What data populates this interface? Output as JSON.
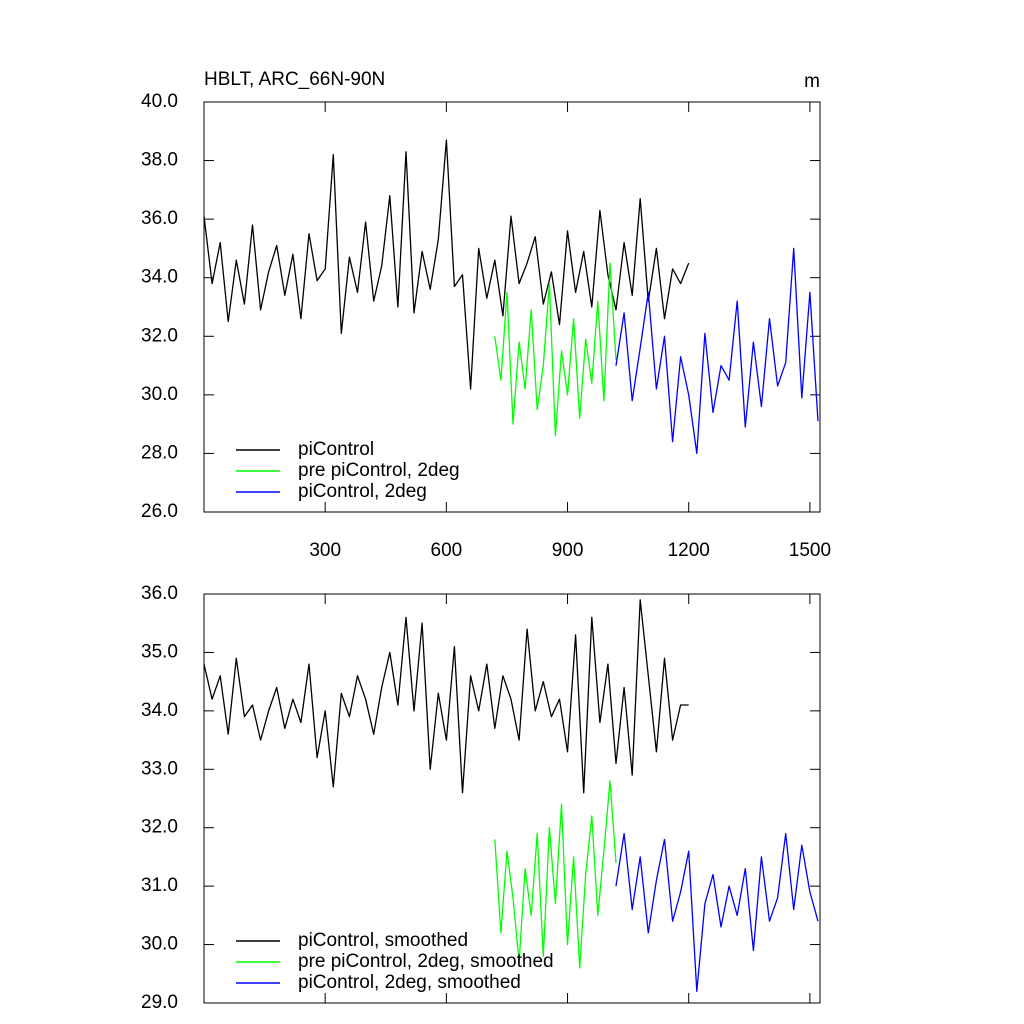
{
  "chart_data": [
    {
      "type": "line",
      "title": "HBLT, ARC_66N-90N",
      "units": "m",
      "legend": "lower left",
      "xtick_labels": true,
      "xlim": [
        0,
        1525
      ],
      "xticks": [
        300,
        600,
        900,
        1200,
        1500
      ],
      "ylim": [
        26,
        40
      ],
      "yticks": [
        {
          "value": 26,
          "label": "26.0"
        },
        {
          "value": 28,
          "label": "28.0"
        },
        {
          "value": 30,
          "label": "30.0"
        },
        {
          "value": 32,
          "label": "32.0"
        },
        {
          "value": 34,
          "label": "34.0"
        },
        {
          "value": 36,
          "label": "36.0"
        },
        {
          "value": 38,
          "label": "38.0"
        },
        {
          "value": 40,
          "label": "40.0"
        }
      ],
      "series": [
        {
          "name": "piControl",
          "color": "#000000",
          "x": [
            0,
            20,
            40,
            60,
            80,
            100,
            120,
            140,
            160,
            180,
            200,
            220,
            240,
            260,
            280,
            300,
            320,
            340,
            360,
            380,
            400,
            420,
            440,
            460,
            480,
            500,
            520,
            540,
            560,
            580,
            600,
            620,
            640,
            660,
            680,
            700,
            720,
            740,
            760,
            780,
            800,
            820,
            840,
            860,
            880,
            900,
            920,
            940,
            960,
            980,
            1000,
            1020,
            1040,
            1060,
            1080,
            1100,
            1120,
            1140,
            1160,
            1180,
            1200
          ],
          "values": [
            36.1,
            33.8,
            35.2,
            32.5,
            34.6,
            33.1,
            35.8,
            32.9,
            34.2,
            35.1,
            33.4,
            34.8,
            32.6,
            35.5,
            33.9,
            34.3,
            38.2,
            32.1,
            34.7,
            33.5,
            35.9,
            33.2,
            34.4,
            36.8,
            33.0,
            38.3,
            32.8,
            34.9,
            33.6,
            35.3,
            38.7,
            33.7,
            34.1,
            30.2,
            35.0,
            33.3,
            34.6,
            32.7,
            36.1,
            33.8,
            34.5,
            35.4,
            33.1,
            34.2,
            32.4,
            35.6,
            33.5,
            34.9,
            33.0,
            36.3,
            34.1,
            32.9,
            35.2,
            33.4,
            36.7,
            33.2,
            35.0,
            32.6,
            34.3,
            33.8,
            34.5
          ]
        },
        {
          "name": "pre piControl, 2deg",
          "color": "#00ff00",
          "x": [
            720,
            735,
            750,
            765,
            780,
            795,
            810,
            825,
            840,
            855,
            870,
            885,
            900,
            915,
            930,
            945,
            960,
            975,
            990,
            1005,
            1020
          ],
          "values": [
            32.0,
            30.5,
            33.5,
            29.0,
            31.8,
            30.2,
            32.9,
            29.5,
            31.0,
            33.8,
            28.6,
            31.5,
            30.0,
            32.6,
            29.2,
            31.9,
            30.4,
            33.2,
            29.8,
            34.5,
            31.2
          ]
        },
        {
          "name": "piControl, 2deg",
          "color": "#0000ff",
          "x": [
            1020,
            1040,
            1060,
            1080,
            1100,
            1120,
            1140,
            1160,
            1180,
            1200,
            1220,
            1240,
            1260,
            1280,
            1300,
            1320,
            1340,
            1360,
            1380,
            1400,
            1420,
            1440,
            1460,
            1480,
            1500,
            1520
          ],
          "values": [
            31.0,
            32.8,
            29.8,
            31.6,
            33.5,
            30.2,
            32.0,
            28.4,
            31.3,
            30.0,
            28.0,
            32.1,
            29.4,
            31.0,
            30.5,
            33.2,
            28.9,
            31.8,
            29.6,
            32.6,
            30.3,
            31.1,
            35.0,
            29.9,
            33.5,
            29.1
          ]
        }
      ]
    },
    {
      "type": "line",
      "legend": "lower left",
      "xtick_labels": false,
      "xlim": [
        0,
        1525
      ],
      "xticks": [
        300,
        600,
        900,
        1200,
        1500
      ],
      "ylim": [
        29,
        36
      ],
      "yticks": [
        {
          "value": 29,
          "label": "29.0"
        },
        {
          "value": 30,
          "label": "30.0"
        },
        {
          "value": 31,
          "label": "31.0"
        },
        {
          "value": 32,
          "label": "32.0"
        },
        {
          "value": 33,
          "label": "33.0"
        },
        {
          "value": 34,
          "label": "34.0"
        },
        {
          "value": 35,
          "label": "35.0"
        },
        {
          "value": 36,
          "label": "36.0"
        }
      ],
      "series": [
        {
          "name": "piControl, smoothed",
          "color": "#000000",
          "x": [
            0,
            20,
            40,
            60,
            80,
            100,
            120,
            140,
            160,
            180,
            200,
            220,
            240,
            260,
            280,
            300,
            320,
            340,
            360,
            380,
            400,
            420,
            440,
            460,
            480,
            500,
            520,
            540,
            560,
            580,
            600,
            620,
            640,
            660,
            680,
            700,
            720,
            740,
            760,
            780,
            800,
            820,
            840,
            860,
            880,
            900,
            920,
            940,
            960,
            980,
            1000,
            1020,
            1040,
            1060,
            1080,
            1100,
            1120,
            1140,
            1160,
            1180,
            1200
          ],
          "values": [
            34.8,
            34.2,
            34.6,
            33.6,
            34.9,
            33.9,
            34.1,
            33.5,
            34.0,
            34.4,
            33.7,
            34.2,
            33.8,
            34.8,
            33.2,
            34.0,
            32.7,
            34.3,
            33.9,
            34.6,
            34.2,
            33.6,
            34.4,
            35.0,
            34.1,
            35.6,
            34.0,
            35.5,
            33.0,
            34.3,
            33.5,
            35.1,
            32.6,
            34.6,
            34.0,
            34.8,
            33.7,
            34.6,
            34.2,
            33.5,
            35.4,
            34.0,
            34.5,
            33.9,
            34.2,
            33.3,
            35.3,
            32.6,
            35.6,
            33.8,
            34.8,
            33.1,
            34.4,
            32.9,
            35.9,
            34.6,
            33.3,
            34.9,
            33.5,
            34.1,
            34.1
          ]
        },
        {
          "name": "pre piControl, 2deg, smoothed",
          "color": "#00ff00",
          "x": [
            720,
            735,
            750,
            765,
            780,
            795,
            810,
            825,
            840,
            855,
            870,
            885,
            900,
            915,
            930,
            945,
            960,
            975,
            990,
            1005,
            1020
          ],
          "values": [
            31.8,
            30.2,
            31.6,
            30.8,
            29.7,
            31.3,
            30.5,
            31.9,
            29.8,
            32.0,
            30.7,
            32.4,
            30.0,
            31.5,
            29.6,
            31.2,
            32.2,
            30.5,
            31.6,
            32.8,
            31.4
          ]
        },
        {
          "name": "piControl, 2deg, smoothed",
          "color": "#0000ff",
          "x": [
            1020,
            1040,
            1060,
            1080,
            1100,
            1120,
            1140,
            1160,
            1180,
            1200,
            1220,
            1240,
            1260,
            1280,
            1300,
            1320,
            1340,
            1360,
            1380,
            1400,
            1420,
            1440,
            1460,
            1480,
            1500,
            1520
          ],
          "values": [
            31.0,
            31.9,
            30.6,
            31.5,
            30.2,
            31.1,
            31.8,
            30.4,
            30.9,
            31.6,
            29.2,
            30.7,
            31.2,
            30.3,
            31.0,
            30.5,
            31.3,
            29.9,
            31.5,
            30.4,
            30.8,
            31.9,
            30.6,
            31.7,
            30.9,
            30.4
          ]
        }
      ]
    }
  ]
}
